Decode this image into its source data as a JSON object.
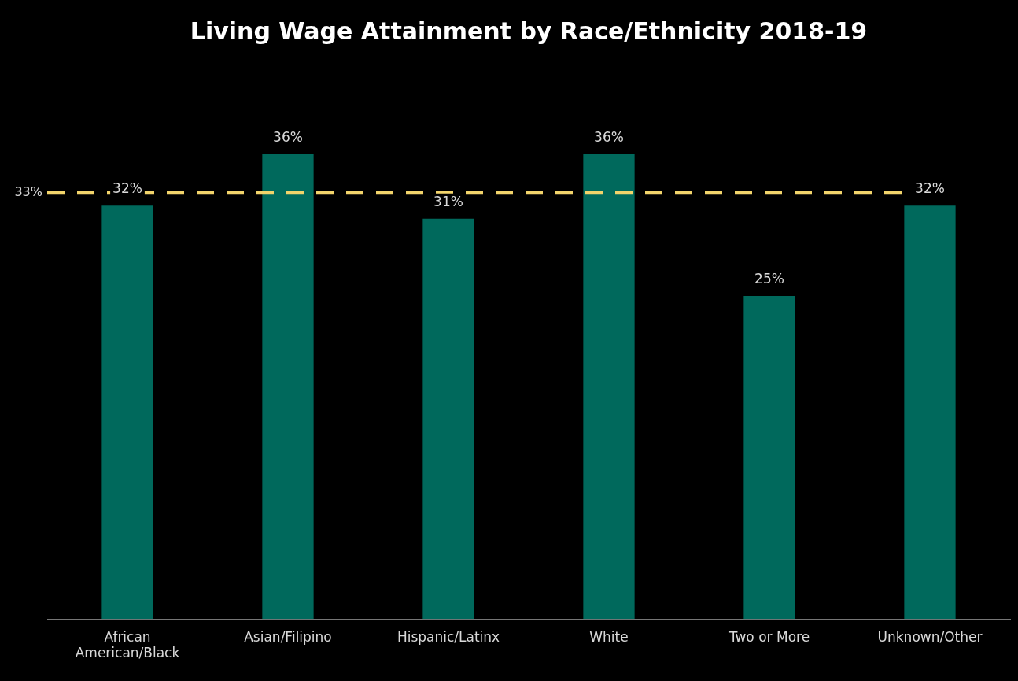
{
  "chart_data": {
    "type": "bar",
    "title": "Living Wage Attainment by Race/Ethnicity 2018-19",
    "categories": [
      "African American/Black",
      "Asian/Filipino",
      "Hispanic/Latinx",
      "White",
      "Two or More",
      "Unknown/Other"
    ],
    "values": [
      32,
      36,
      31,
      36,
      25,
      32
    ],
    "value_labels": [
      "32%",
      "36%",
      "31%",
      "36%",
      "25%",
      "32%"
    ],
    "color": "#00695c",
    "grid": false,
    "legend": false,
    "ref_lines": [
      {
        "axis": "y",
        "value": 33,
        "label": "33%",
        "color": "#f2d46b",
        "line_style": "dashed"
      }
    ]
  }
}
